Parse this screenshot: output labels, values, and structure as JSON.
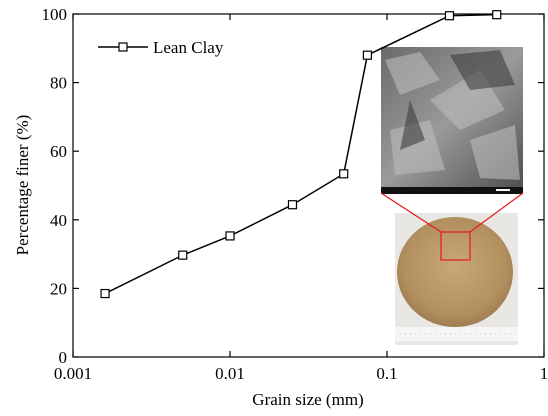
{
  "chart_data": {
    "type": "line",
    "x_label": "Grain size (mm)",
    "y_label": "Percentage finer (%)",
    "x": [
      0.0016,
      0.005,
      0.01,
      0.025,
      0.053,
      0.075,
      0.25,
      0.5
    ],
    "series": [
      {
        "name": "Lean Clay",
        "color": "#000000",
        "values": [
          18.5,
          29.7,
          35.3,
          44.4,
          53.4,
          88,
          99.5,
          99.8
        ]
      }
    ],
    "xlim": [
      0.001,
      1
    ],
    "xticks": [
      0.001,
      0.01,
      0.1,
      1
    ],
    "xscale": "log",
    "ylim": [
      0,
      100
    ],
    "yticks": [
      0,
      20,
      40,
      60,
      80,
      100
    ],
    "legend": "upper left"
  }
}
